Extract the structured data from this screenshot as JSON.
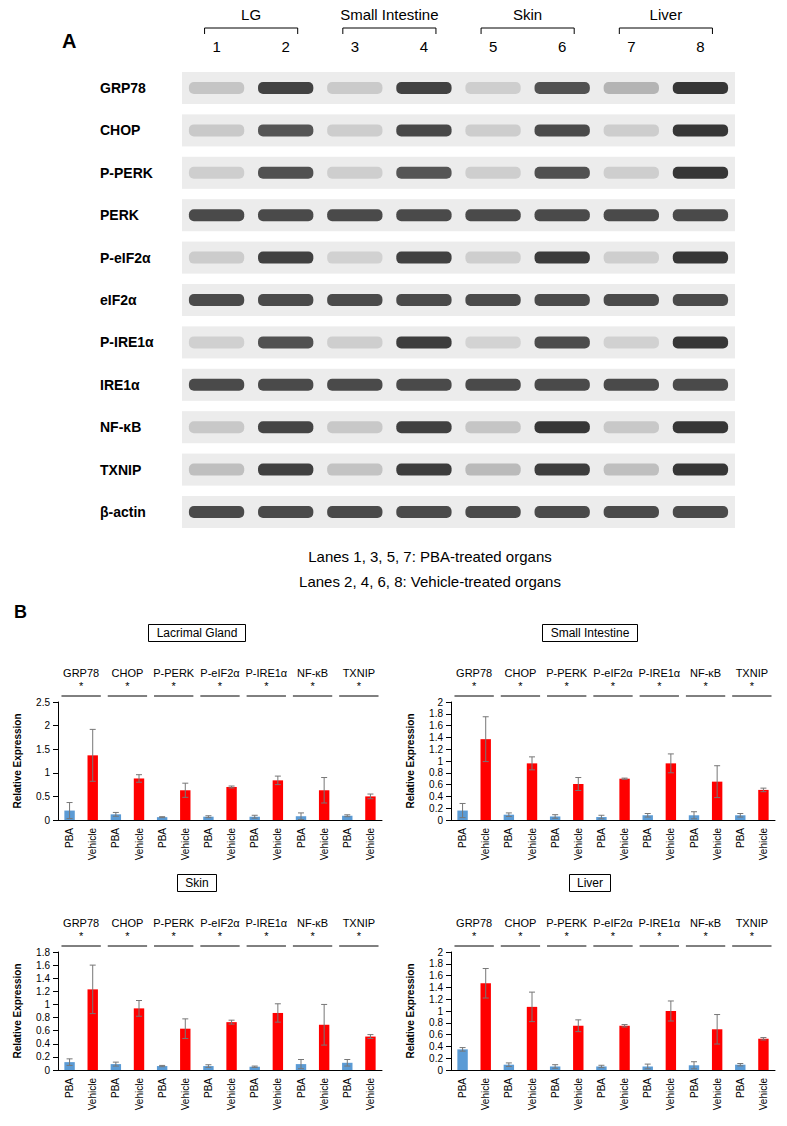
{
  "panel_a": {
    "label": "A",
    "groups": [
      {
        "name": "LG",
        "lanes": [
          1,
          2
        ]
      },
      {
        "name": "Small Intestine",
        "lanes": [
          3,
          4
        ]
      },
      {
        "name": "Skin",
        "lanes": [
          5,
          6
        ]
      },
      {
        "name": "Liver",
        "lanes": [
          7,
          8
        ]
      }
    ],
    "rows": [
      "GRP78",
      "CHOP",
      "P-PERK",
      "PERK",
      "P-eIF2α",
      "eIF2α",
      "P-IRE1α",
      "IRE1α",
      "NF-κB",
      "TXNIP",
      "β-actin"
    ],
    "notes": [
      "Lanes 1, 3, 5, 7: PBA-treated organs",
      "Lanes 2, 4, 6, 8: Vehicle-treated organs"
    ]
  },
  "panel_b": {
    "label": "B"
  },
  "chart_data": [
    {
      "type": "bar",
      "title": "Lacrimal Gland",
      "y_label": "Relative Expression",
      "categories": [
        "GRP78",
        "CHOP",
        "P-PERK",
        "P-eIF2α",
        "P-IRE1α",
        "NF-κB",
        "TXNIP"
      ],
      "significance": [
        "*",
        "*",
        "*",
        "*",
        "*",
        "*",
        "*"
      ],
      "series": [
        {
          "name": "PBA",
          "color": "#5b9bd5",
          "values": [
            0.2,
            0.12,
            0.06,
            0.07,
            0.07,
            0.08,
            0.09
          ],
          "errors": [
            0.17,
            0.04,
            0.01,
            0.02,
            0.03,
            0.07,
            0.02
          ]
        },
        {
          "name": "Vehicle",
          "color": "#ff0000",
          "values": [
            1.37,
            0.88,
            0.63,
            0.7,
            0.84,
            0.63,
            0.5
          ],
          "errors": [
            0.55,
            0.08,
            0.15,
            0.02,
            0.09,
            0.27,
            0.05
          ]
        }
      ],
      "ylim": [
        0,
        2.5
      ],
      "yticks": [
        0,
        0.5,
        1,
        1.5,
        2,
        2.5
      ],
      "grid": false
    },
    {
      "type": "bar",
      "title": "Small Intestine",
      "y_label": "Relative Expression",
      "categories": [
        "GRP78",
        "CHOP",
        "P-PERK",
        "P-eIF2α",
        "P-IRE1α",
        "NF-κB",
        "TXNIP"
      ],
      "significance": [
        "*",
        "*",
        "*",
        "*",
        "*",
        "*",
        "*"
      ],
      "series": [
        {
          "name": "PBA",
          "color": "#5b9bd5",
          "values": [
            0.16,
            0.09,
            0.06,
            0.05,
            0.08,
            0.08,
            0.08
          ],
          "errors": [
            0.12,
            0.03,
            0.03,
            0.03,
            0.03,
            0.06,
            0.03
          ]
        },
        {
          "name": "Vehicle",
          "color": "#ff0000",
          "values": [
            1.37,
            0.96,
            0.61,
            0.7,
            0.96,
            0.65,
            0.51
          ],
          "errors": [
            0.38,
            0.11,
            0.11,
            0.01,
            0.16,
            0.27,
            0.03
          ]
        }
      ],
      "ylim": [
        0,
        2
      ],
      "yticks": [
        0,
        0.2,
        0.4,
        0.6,
        0.8,
        1,
        1.2,
        1.4,
        1.6,
        1.8,
        2
      ],
      "grid": false
    },
    {
      "type": "bar",
      "title": "Skin",
      "y_label": "Relative Expression",
      "categories": [
        "GRP78",
        "CHOP",
        "P-PERK",
        "P-eIF2α",
        "P-IRE1α",
        "NF-κB",
        "TXNIP"
      ],
      "significance": [
        "*",
        "*",
        "*",
        "*",
        "*",
        "*",
        "*"
      ],
      "series": [
        {
          "name": "PBA",
          "color": "#5b9bd5",
          "values": [
            0.12,
            0.09,
            0.06,
            0.06,
            0.05,
            0.09,
            0.11
          ],
          "errors": [
            0.05,
            0.03,
            0.01,
            0.02,
            0.01,
            0.07,
            0.05
          ]
        },
        {
          "name": "Vehicle",
          "color": "#ff0000",
          "values": [
            1.23,
            0.94,
            0.63,
            0.73,
            0.87,
            0.69,
            0.51
          ],
          "errors": [
            0.37,
            0.12,
            0.15,
            0.03,
            0.14,
            0.31,
            0.03
          ]
        }
      ],
      "ylim": [
        0,
        1.8
      ],
      "yticks": [
        0,
        0.2,
        0.4,
        0.6,
        0.8,
        1,
        1.2,
        1.4,
        1.6,
        1.8
      ],
      "grid": false
    },
    {
      "type": "bar",
      "title": "Liver",
      "y_label": "Relative Expression",
      "categories": [
        "GRP78",
        "CHOP",
        "P-PERK",
        "P-eIF2α",
        "P-IRE1α",
        "NF-κB",
        "TXNIP"
      ],
      "significance": [
        "*",
        "*",
        "*",
        "*",
        "*",
        "*",
        "*"
      ],
      "series": [
        {
          "name": "PBA",
          "color": "#5b9bd5",
          "values": [
            0.35,
            0.09,
            0.06,
            0.06,
            0.06,
            0.08,
            0.09
          ],
          "errors": [
            0.03,
            0.03,
            0.03,
            0.02,
            0.04,
            0.06,
            0.02
          ]
        },
        {
          "name": "Vehicle",
          "color": "#ff0000",
          "values": [
            1.47,
            1.07,
            0.75,
            0.75,
            1.0,
            0.69,
            0.53
          ],
          "errors": [
            0.25,
            0.25,
            0.1,
            0.02,
            0.17,
            0.25,
            0.02
          ]
        }
      ],
      "ylim": [
        0,
        2
      ],
      "yticks": [
        0,
        0.2,
        0.4,
        0.6,
        0.8,
        1,
        1.2,
        1.4,
        1.6,
        1.8,
        2
      ],
      "grid": false
    }
  ]
}
